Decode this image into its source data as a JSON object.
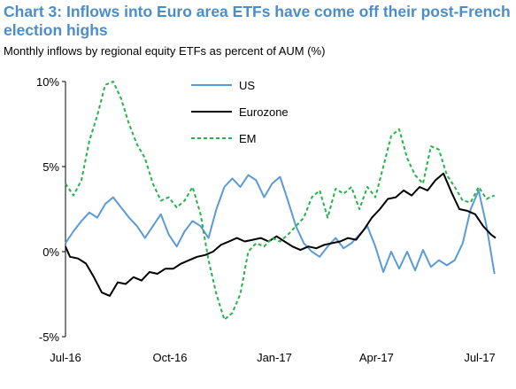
{
  "chart_data": {
    "type": "line",
    "title": "Chart 3: Inflows into Euro area ETFs have come off their post-French election highs",
    "subtitle": "Monthly inflows by regional equity ETFs as percent of AUM (%)",
    "xlabel": "",
    "ylabel": "",
    "x_tick_labels": [
      "Jul-16",
      "Oct-16",
      "Jan-17",
      "Apr-17",
      "Jul-17"
    ],
    "y_tick_labels": [
      "-5%",
      "0%",
      "5%",
      "10%"
    ],
    "y_ticks": [
      -5,
      0,
      5,
      10
    ],
    "ylim": [
      -5,
      10
    ],
    "xlim": [
      "2016-07-01",
      "2017-07-15"
    ],
    "grid": false,
    "legend_position": "top-center",
    "series": [
      {
        "name": "US",
        "color": "#5b9bd5",
        "style": "solid",
        "points": [
          [
            "2016-07-01",
            0.5
          ],
          [
            "2016-07-08",
            1.2
          ],
          [
            "2016-07-15",
            1.8
          ],
          [
            "2016-07-22",
            2.3
          ],
          [
            "2016-07-29",
            2.0
          ],
          [
            "2016-08-05",
            2.8
          ],
          [
            "2016-08-12",
            3.2
          ],
          [
            "2016-08-19",
            2.6
          ],
          [
            "2016-08-26",
            2.0
          ],
          [
            "2016-09-02",
            1.5
          ],
          [
            "2016-09-09",
            0.8
          ],
          [
            "2016-09-16",
            1.5
          ],
          [
            "2016-09-23",
            2.2
          ],
          [
            "2016-09-30",
            1.0
          ],
          [
            "2016-10-07",
            0.3
          ],
          [
            "2016-10-14",
            1.2
          ],
          [
            "2016-10-21",
            1.8
          ],
          [
            "2016-10-28",
            1.5
          ],
          [
            "2016-11-04",
            0.8
          ],
          [
            "2016-11-11",
            2.5
          ],
          [
            "2016-11-18",
            3.8
          ],
          [
            "2016-11-25",
            4.3
          ],
          [
            "2016-12-02",
            3.8
          ],
          [
            "2016-12-09",
            4.5
          ],
          [
            "2016-12-16",
            4.2
          ],
          [
            "2016-12-23",
            3.2
          ],
          [
            "2016-12-30",
            4.0
          ],
          [
            "2017-01-06",
            4.4
          ],
          [
            "2017-01-13",
            3.0
          ],
          [
            "2017-01-20",
            1.5
          ],
          [
            "2017-01-27",
            0.5
          ],
          [
            "2017-02-03",
            0.0
          ],
          [
            "2017-02-10",
            -0.3
          ],
          [
            "2017-02-17",
            0.3
          ],
          [
            "2017-02-24",
            0.8
          ],
          [
            "2017-03-03",
            0.2
          ],
          [
            "2017-03-10",
            0.5
          ],
          [
            "2017-03-17",
            1.0
          ],
          [
            "2017-03-24",
            1.5
          ],
          [
            "2017-03-31",
            0.3
          ],
          [
            "2017-04-07",
            -1.2
          ],
          [
            "2017-04-14",
            0.0
          ],
          [
            "2017-04-21",
            -1.0
          ],
          [
            "2017-04-28",
            0.0
          ],
          [
            "2017-05-05",
            -1.1
          ],
          [
            "2017-05-12",
            0.1
          ],
          [
            "2017-05-19",
            -0.9
          ],
          [
            "2017-05-26",
            -0.5
          ],
          [
            "2017-06-02",
            -0.8
          ],
          [
            "2017-06-09",
            -0.5
          ],
          [
            "2017-06-16",
            0.5
          ],
          [
            "2017-06-23",
            2.5
          ],
          [
            "2017-06-30",
            3.6
          ],
          [
            "2017-07-07",
            1.5
          ],
          [
            "2017-07-14",
            -1.3
          ]
        ]
      },
      {
        "name": "Eurozone",
        "color": "#000000",
        "style": "solid",
        "points": [
          [
            "2016-07-01",
            0.3
          ],
          [
            "2016-07-05",
            -0.3
          ],
          [
            "2016-07-12",
            -0.4
          ],
          [
            "2016-07-19",
            -0.7
          ],
          [
            "2016-07-26",
            -1.5
          ],
          [
            "2016-08-02",
            -2.4
          ],
          [
            "2016-08-09",
            -2.6
          ],
          [
            "2016-08-16",
            -1.8
          ],
          [
            "2016-08-23",
            -1.9
          ],
          [
            "2016-08-30",
            -1.5
          ],
          [
            "2016-09-06",
            -1.7
          ],
          [
            "2016-09-13",
            -1.2
          ],
          [
            "2016-09-20",
            -1.3
          ],
          [
            "2016-09-27",
            -1.0
          ],
          [
            "2016-10-04",
            -1.0
          ],
          [
            "2016-10-11",
            -0.7
          ],
          [
            "2016-10-18",
            -0.5
          ],
          [
            "2016-10-25",
            -0.3
          ],
          [
            "2016-11-01",
            -0.2
          ],
          [
            "2016-11-08",
            0.0
          ],
          [
            "2016-11-15",
            0.4
          ],
          [
            "2016-11-22",
            0.6
          ],
          [
            "2016-11-29",
            0.8
          ],
          [
            "2016-12-06",
            0.6
          ],
          [
            "2016-12-13",
            0.7
          ],
          [
            "2016-12-20",
            0.8
          ],
          [
            "2016-12-27",
            0.6
          ],
          [
            "2017-01-03",
            0.9
          ],
          [
            "2017-01-10",
            0.6
          ],
          [
            "2017-01-17",
            0.3
          ],
          [
            "2017-01-24",
            0.1
          ],
          [
            "2017-01-31",
            0.3
          ],
          [
            "2017-02-07",
            0.2
          ],
          [
            "2017-02-14",
            0.4
          ],
          [
            "2017-02-21",
            0.5
          ],
          [
            "2017-02-28",
            0.6
          ],
          [
            "2017-03-07",
            0.8
          ],
          [
            "2017-03-14",
            0.7
          ],
          [
            "2017-03-21",
            1.3
          ],
          [
            "2017-03-28",
            2.0
          ],
          [
            "2017-04-04",
            2.5
          ],
          [
            "2017-04-11",
            3.1
          ],
          [
            "2017-04-18",
            3.2
          ],
          [
            "2017-04-25",
            3.6
          ],
          [
            "2017-05-02",
            3.3
          ],
          [
            "2017-05-09",
            3.8
          ],
          [
            "2017-05-16",
            3.6
          ],
          [
            "2017-05-23",
            4.2
          ],
          [
            "2017-05-30",
            4.6
          ],
          [
            "2017-06-06",
            3.5
          ],
          [
            "2017-06-13",
            2.5
          ],
          [
            "2017-06-20",
            2.4
          ],
          [
            "2017-06-27",
            2.2
          ],
          [
            "2017-07-04",
            1.5
          ],
          [
            "2017-07-11",
            1.0
          ],
          [
            "2017-07-15",
            0.8
          ]
        ]
      },
      {
        "name": "EM",
        "color": "#26b34a",
        "style": "dashed",
        "points": [
          [
            "2016-07-01",
            4.0
          ],
          [
            "2016-07-08",
            3.3
          ],
          [
            "2016-07-15",
            4.2
          ],
          [
            "2016-07-22",
            6.5
          ],
          [
            "2016-07-29",
            8.0
          ],
          [
            "2016-08-05",
            9.8
          ],
          [
            "2016-08-12",
            10.0
          ],
          [
            "2016-08-19",
            9.0
          ],
          [
            "2016-08-26",
            7.5
          ],
          [
            "2016-09-02",
            6.3
          ],
          [
            "2016-09-09",
            5.5
          ],
          [
            "2016-09-16",
            4.0
          ],
          [
            "2016-09-23",
            3.0
          ],
          [
            "2016-09-30",
            3.2
          ],
          [
            "2016-10-07",
            2.6
          ],
          [
            "2016-10-14",
            3.0
          ],
          [
            "2016-10-21",
            3.8
          ],
          [
            "2016-10-28",
            2.2
          ],
          [
            "2016-11-04",
            -0.5
          ],
          [
            "2016-11-11",
            -2.5
          ],
          [
            "2016-11-18",
            -4.0
          ],
          [
            "2016-11-25",
            -3.6
          ],
          [
            "2016-12-02",
            -2.5
          ],
          [
            "2016-12-09",
            0.0
          ],
          [
            "2016-12-16",
            0.5
          ],
          [
            "2016-12-23",
            0.3
          ],
          [
            "2016-12-30",
            0.8
          ],
          [
            "2017-01-06",
            0.6
          ],
          [
            "2017-01-13",
            1.0
          ],
          [
            "2017-01-20",
            1.5
          ],
          [
            "2017-01-27",
            2.0
          ],
          [
            "2017-02-03",
            3.2
          ],
          [
            "2017-02-10",
            3.6
          ],
          [
            "2017-02-17",
            2.0
          ],
          [
            "2017-02-24",
            3.7
          ],
          [
            "2017-03-03",
            3.4
          ],
          [
            "2017-03-10",
            3.8
          ],
          [
            "2017-03-17",
            2.5
          ],
          [
            "2017-03-24",
            3.8
          ],
          [
            "2017-03-31",
            3.2
          ],
          [
            "2017-04-07",
            5.0
          ],
          [
            "2017-04-14",
            6.8
          ],
          [
            "2017-04-21",
            7.2
          ],
          [
            "2017-04-28",
            5.5
          ],
          [
            "2017-05-05",
            4.5
          ],
          [
            "2017-05-12",
            4.0
          ],
          [
            "2017-05-19",
            6.2
          ],
          [
            "2017-05-26",
            6.0
          ],
          [
            "2017-06-02",
            4.5
          ],
          [
            "2017-06-09",
            3.8
          ],
          [
            "2017-06-16",
            3.0
          ],
          [
            "2017-06-23",
            2.9
          ],
          [
            "2017-06-30",
            3.8
          ],
          [
            "2017-07-07",
            3.1
          ],
          [
            "2017-07-14",
            3.3
          ]
        ]
      }
    ]
  }
}
